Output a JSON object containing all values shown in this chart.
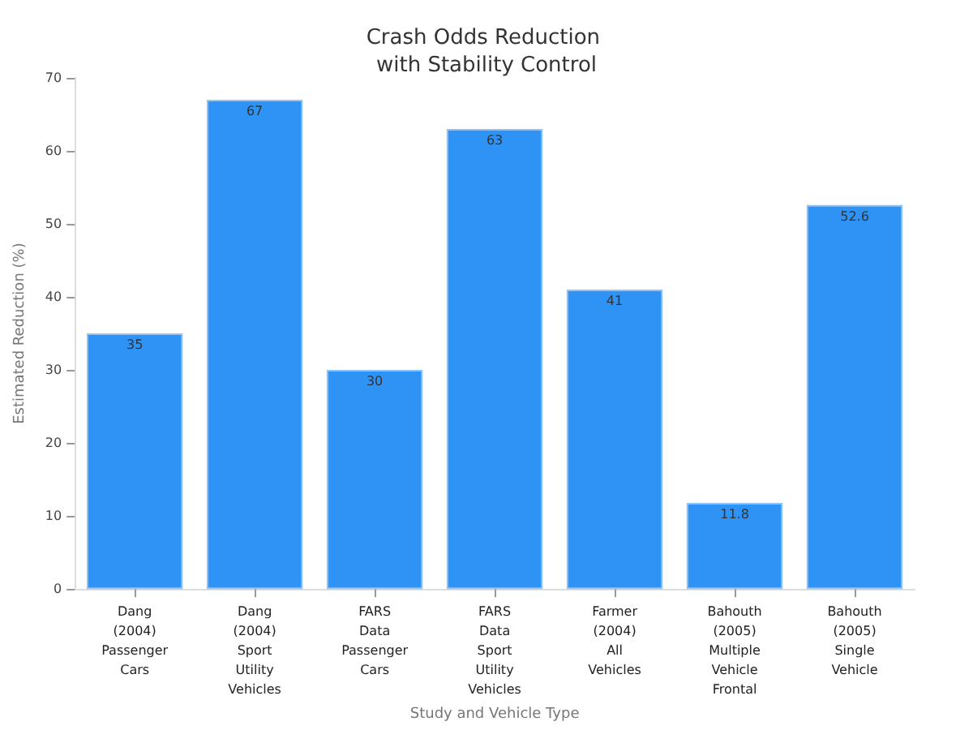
{
  "chart_data": {
    "type": "bar",
    "title": "Crash Odds Reduction with Stability Control",
    "xlabel": "Study and Vehicle Type",
    "ylabel": "Estimated Reduction (%)",
    "categories": [
      "Dang (2004) Passenger Cars",
      "Dang (2004) Sport Utility Vehicles",
      "FARS Data Passenger Cars",
      "FARS Data Sport Utility Vehicles",
      "Farmer (2004) All Vehicles",
      "Bahouth (2005) Multiple Vehicle Frontal",
      "Bahouth (2005) Single Vehicle"
    ],
    "values": [
      35,
      67,
      30,
      63,
      41,
      11.8,
      52.6
    ],
    "color": "#2f92f5",
    "ylim": [
      0,
      70
    ],
    "yticks": [
      0,
      10,
      20,
      30,
      40,
      50,
      60,
      70
    ],
    "grid": false,
    "data_labels": true
  }
}
